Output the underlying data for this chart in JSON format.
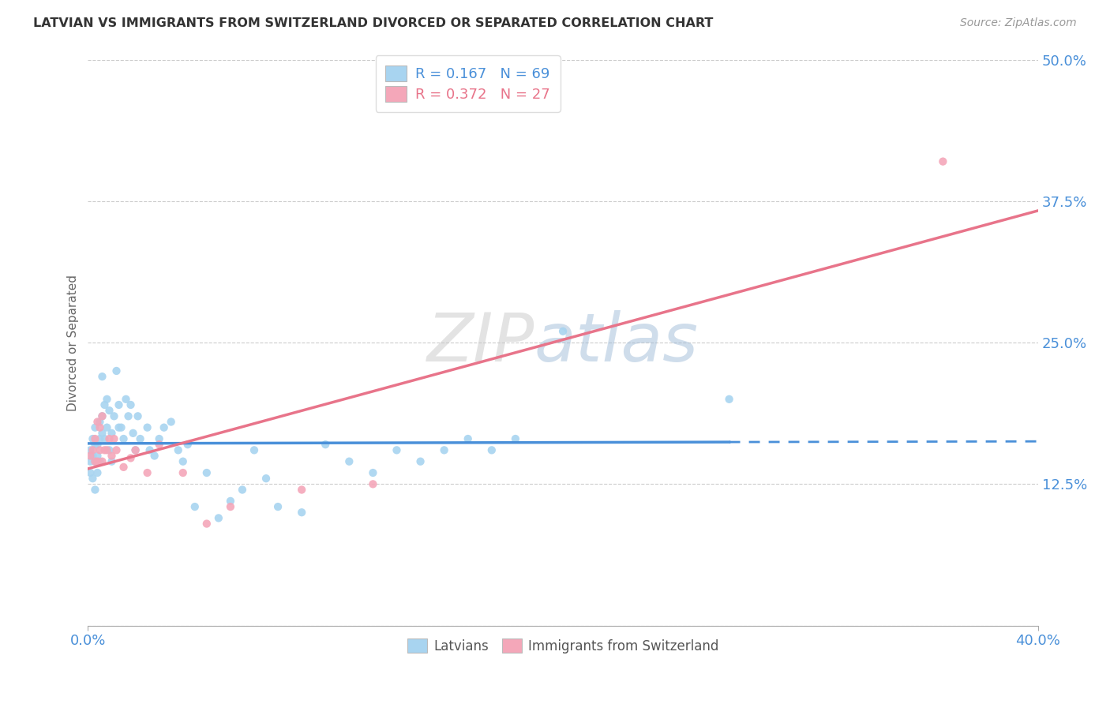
{
  "title": "LATVIAN VS IMMIGRANTS FROM SWITZERLAND DIVORCED OR SEPARATED CORRELATION CHART",
  "source": "Source: ZipAtlas.com",
  "ylabel": "Divorced or Separated",
  "watermark_zip": "ZIP",
  "watermark_atlas": "atlas",
  "xmin": 0.0,
  "xmax": 0.4,
  "ymin": 0.0,
  "ymax": 0.5,
  "yticks": [
    0.0,
    0.125,
    0.25,
    0.375,
    0.5
  ],
  "ytick_labels": [
    "",
    "12.5%",
    "25.0%",
    "37.5%",
    "50.0%"
  ],
  "xticks": [
    0.0,
    0.4
  ],
  "xtick_labels": [
    "0.0%",
    "40.0%"
  ],
  "legend_r1": "R = 0.167",
  "legend_n1": "N = 69",
  "legend_r2": "R = 0.372",
  "legend_n2": "N = 27",
  "color_latvian": "#a8d4f0",
  "color_swiss": "#f4a7b9",
  "color_line_latvian": "#4a90d9",
  "color_line_swiss": "#e8748a",
  "color_axis_label": "#4a90d9",
  "latvian_x": [
    0.001,
    0.001,
    0.001,
    0.002,
    0.002,
    0.002,
    0.003,
    0.003,
    0.003,
    0.003,
    0.004,
    0.004,
    0.004,
    0.005,
    0.005,
    0.005,
    0.006,
    0.006,
    0.006,
    0.007,
    0.007,
    0.008,
    0.008,
    0.009,
    0.009,
    0.01,
    0.01,
    0.011,
    0.012,
    0.013,
    0.013,
    0.014,
    0.015,
    0.016,
    0.017,
    0.018,
    0.019,
    0.02,
    0.021,
    0.022,
    0.025,
    0.026,
    0.028,
    0.03,
    0.032,
    0.035,
    0.038,
    0.04,
    0.042,
    0.045,
    0.05,
    0.055,
    0.06,
    0.065,
    0.07,
    0.075,
    0.08,
    0.09,
    0.1,
    0.11,
    0.12,
    0.13,
    0.14,
    0.15,
    0.16,
    0.17,
    0.18,
    0.2,
    0.27
  ],
  "latvian_y": [
    0.155,
    0.145,
    0.135,
    0.165,
    0.15,
    0.13,
    0.175,
    0.16,
    0.145,
    0.12,
    0.16,
    0.15,
    0.135,
    0.18,
    0.165,
    0.145,
    0.22,
    0.185,
    0.17,
    0.195,
    0.165,
    0.2,
    0.175,
    0.19,
    0.155,
    0.17,
    0.145,
    0.185,
    0.225,
    0.195,
    0.175,
    0.175,
    0.165,
    0.2,
    0.185,
    0.195,
    0.17,
    0.155,
    0.185,
    0.165,
    0.175,
    0.155,
    0.15,
    0.165,
    0.175,
    0.18,
    0.155,
    0.145,
    0.16,
    0.105,
    0.135,
    0.095,
    0.11,
    0.12,
    0.155,
    0.13,
    0.105,
    0.1,
    0.16,
    0.145,
    0.135,
    0.155,
    0.145,
    0.155,
    0.165,
    0.155,
    0.165,
    0.26,
    0.2
  ],
  "swiss_x": [
    0.001,
    0.002,
    0.003,
    0.003,
    0.004,
    0.004,
    0.005,
    0.005,
    0.006,
    0.006,
    0.007,
    0.008,
    0.009,
    0.01,
    0.011,
    0.012,
    0.015,
    0.018,
    0.02,
    0.025,
    0.03,
    0.04,
    0.05,
    0.06,
    0.09,
    0.12,
    0.36
  ],
  "swiss_y": [
    0.15,
    0.155,
    0.165,
    0.145,
    0.18,
    0.145,
    0.155,
    0.175,
    0.145,
    0.185,
    0.155,
    0.155,
    0.165,
    0.15,
    0.165,
    0.155,
    0.14,
    0.148,
    0.155,
    0.135,
    0.16,
    0.135,
    0.09,
    0.105,
    0.12,
    0.125,
    0.41
  ],
  "latvian_line_start_x": 0.0,
  "latvian_line_end_x": 0.27,
  "latvian_line_dashed_end_x": 0.4,
  "swiss_line_start_x": 0.0,
  "swiss_line_end_x": 0.4
}
